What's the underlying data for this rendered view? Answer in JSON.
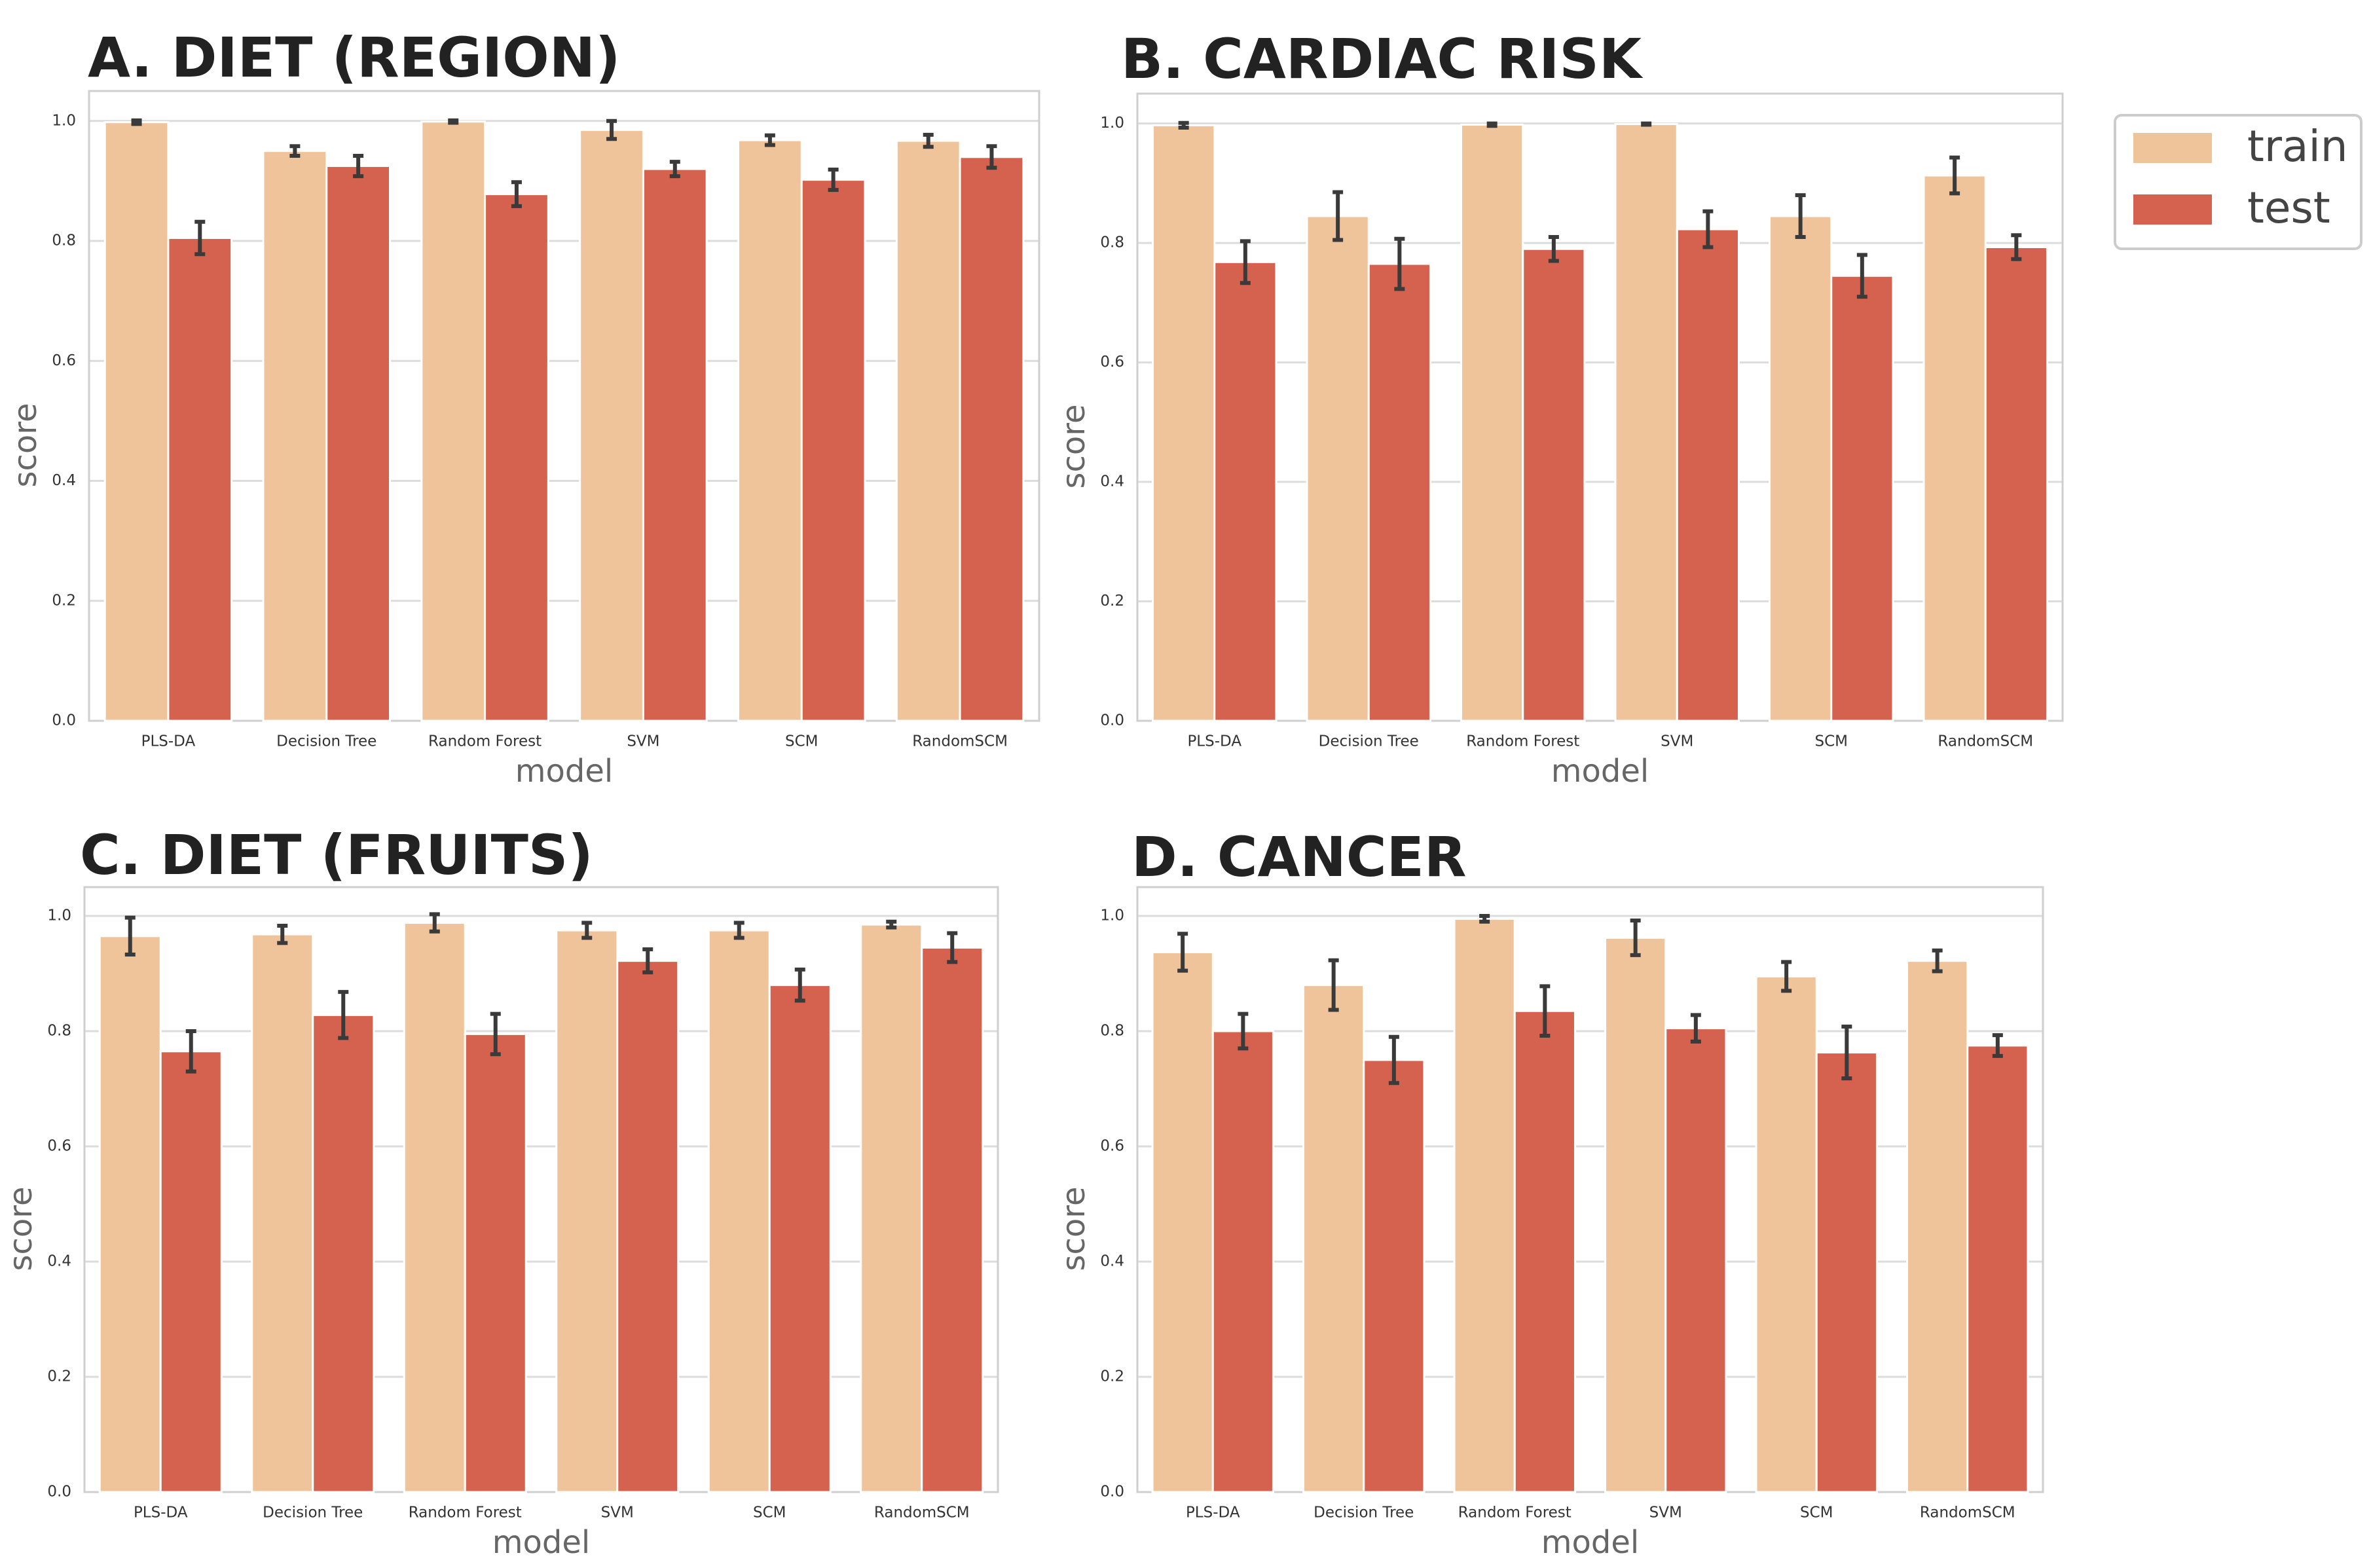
{
  "chart_data": [
    {
      "type": "bar",
      "title": "A.  DIET (REGION)",
      "x_label": "model",
      "y_label": "score",
      "categories": [
        "PLS-DA",
        "Decision Tree",
        "Random Forest",
        "SVM",
        "SCM",
        "RandomSCM"
      ],
      "series": [
        {
          "name": "train",
          "color": "#f0c49b",
          "values": [
            0.998,
            0.95,
            0.999,
            0.985,
            0.968,
            0.967
          ],
          "errors": [
            0.003,
            0.008,
            0.002,
            0.015,
            0.008,
            0.01
          ]
        },
        {
          "name": "test",
          "color": "#d4624e",
          "values": [
            0.805,
            0.925,
            0.878,
            0.92,
            0.902,
            0.94
          ],
          "errors": [
            0.027,
            0.017,
            0.02,
            0.012,
            0.017,
            0.018
          ]
        }
      ],
      "ylim": [
        0,
        1.05
      ],
      "yticks": [
        {
          "value": 0,
          "label": "0.0"
        },
        0.2,
        0.4,
        0.6,
        0.8,
        {
          "value": 1,
          "label": "1.0"
        }
      ],
      "grid": true
    },
    {
      "type": "bar",
      "title": "B.  CARDIAC RISK",
      "x_label": "model",
      "y_label": "score",
      "categories": [
        "PLS-DA",
        "Decision Tree",
        "Random Forest",
        "SVM",
        "SCM",
        "RandomSCM"
      ],
      "series": [
        {
          "name": "train",
          "color": "#f0c49b",
          "values": [
            0.997,
            0.845,
            0.998,
            0.999,
            0.845,
            0.913
          ],
          "errors": [
            0.004,
            0.04,
            0.002,
            0.001,
            0.035,
            0.03
          ]
        },
        {
          "name": "test",
          "color": "#d4624e",
          "values": [
            0.768,
            0.765,
            0.79,
            0.823,
            0.745,
            0.793
          ],
          "errors": [
            0.035,
            0.042,
            0.02,
            0.03,
            0.035,
            0.02
          ]
        }
      ],
      "ylim": [
        0,
        1.05
      ],
      "yticks": [
        {
          "value": 0,
          "label": "0.0"
        },
        0.2,
        0.4,
        0.6,
        0.8,
        {
          "value": 1,
          "label": "1.0"
        }
      ],
      "grid": true
    },
    {
      "type": "bar",
      "title": "C.  DIET (FRUITS)",
      "x_label": "model",
      "y_label": "score",
      "categories": [
        "PLS-DA",
        "Decision Tree",
        "Random Forest",
        "SVM",
        "SCM",
        "RandomSCM"
      ],
      "series": [
        {
          "name": "train",
          "color": "#f0c49b",
          "values": [
            0.965,
            0.968,
            0.988,
            0.975,
            0.975,
            0.985
          ],
          "errors": [
            0.032,
            0.015,
            0.015,
            0.013,
            0.013,
            0.005
          ]
        },
        {
          "name": "test",
          "color": "#d4624e",
          "values": [
            0.765,
            0.828,
            0.795,
            0.922,
            0.88,
            0.945
          ],
          "errors": [
            0.035,
            0.04,
            0.035,
            0.02,
            0.027,
            0.025
          ]
        }
      ],
      "ylim": [
        0,
        1.05
      ],
      "yticks": [
        {
          "value": 0,
          "label": "0.0"
        },
        0.2,
        0.4,
        0.6,
        0.8,
        {
          "value": 1,
          "label": "1.0"
        }
      ],
      "grid": true
    },
    {
      "type": "bar",
      "title": "D.  CANCER",
      "x_label": "model",
      "y_label": "score",
      "categories": [
        "PLS-DA",
        "Decision Tree",
        "Random Forest",
        "SVM",
        "SCM",
        "RandomSCM"
      ],
      "series": [
        {
          "name": "train",
          "color": "#f0c49b",
          "values": [
            0.937,
            0.88,
            0.995,
            0.962,
            0.895,
            0.922
          ],
          "errors": [
            0.032,
            0.043,
            0.005,
            0.03,
            0.025,
            0.018
          ]
        },
        {
          "name": "test",
          "color": "#d4624e",
          "values": [
            0.8,
            0.75,
            0.835,
            0.805,
            0.763,
            0.775
          ],
          "errors": [
            0.03,
            0.04,
            0.043,
            0.023,
            0.045,
            0.018
          ]
        }
      ],
      "ylim": [
        0,
        1.05
      ],
      "yticks": [
        {
          "value": 0,
          "label": "0.0"
        },
        0.2,
        0.4,
        0.6,
        0.8,
        {
          "value": 1,
          "label": "1.0"
        }
      ],
      "grid": true
    }
  ]
}
